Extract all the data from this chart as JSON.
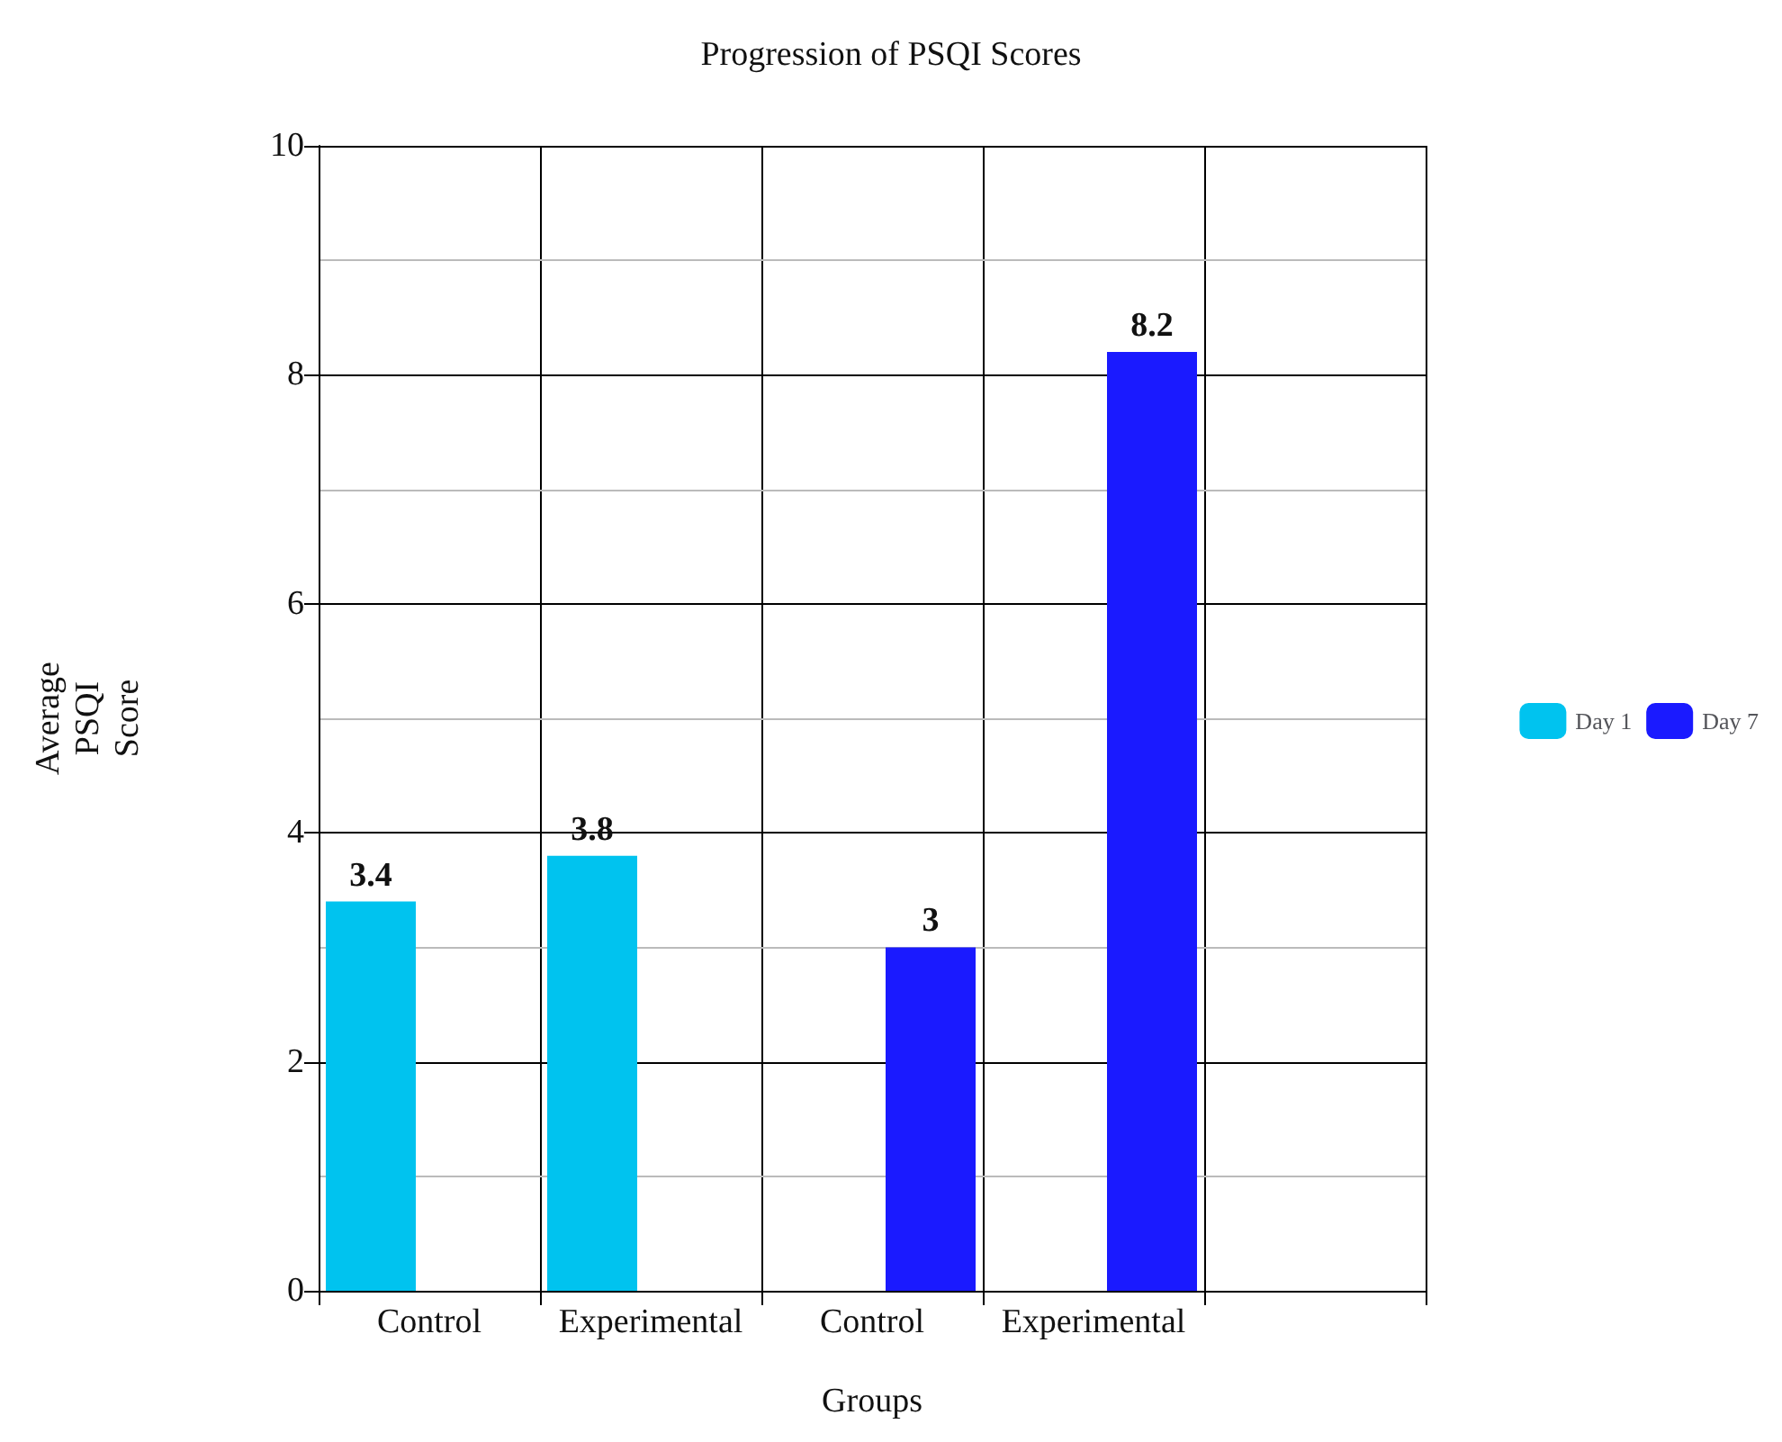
{
  "chart_data": {
    "type": "bar",
    "title": "Progression of PSQI Scores",
    "xlabel": "Groups",
    "ylabel": "Average PSQI Score",
    "categories": [
      "Control",
      "Experimental",
      "Control",
      "Experimental",
      null
    ],
    "series": [
      {
        "name": "Day 1",
        "color": "#00c3ef",
        "values": [
          3.4,
          3.8,
          null,
          null,
          null
        ]
      },
      {
        "name": "Day 7",
        "color": "#1a1aff",
        "values": [
          null,
          null,
          3,
          8.2,
          null
        ]
      }
    ],
    "ylim": [
      0,
      10
    ],
    "yticks": [
      0,
      {
        "value": 1,
        "label": null
      },
      2,
      {
        "value": 3,
        "label": null
      },
      4,
      {
        "value": 5,
        "label": null
      },
      6,
      {
        "value": 7,
        "label": null
      },
      8,
      {
        "value": 9,
        "label": null
      },
      10
    ],
    "grid": true,
    "legend": "right",
    "data_labels": true
  }
}
